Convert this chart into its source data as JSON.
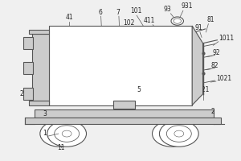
{
  "bg_color": "#f0f0f0",
  "line_color": "#555555",
  "fill_color": "#cccccc",
  "white": "#ffffff",
  "default_lw": 0.8,
  "font_size": 5.5,
  "font_color": "#222222"
}
